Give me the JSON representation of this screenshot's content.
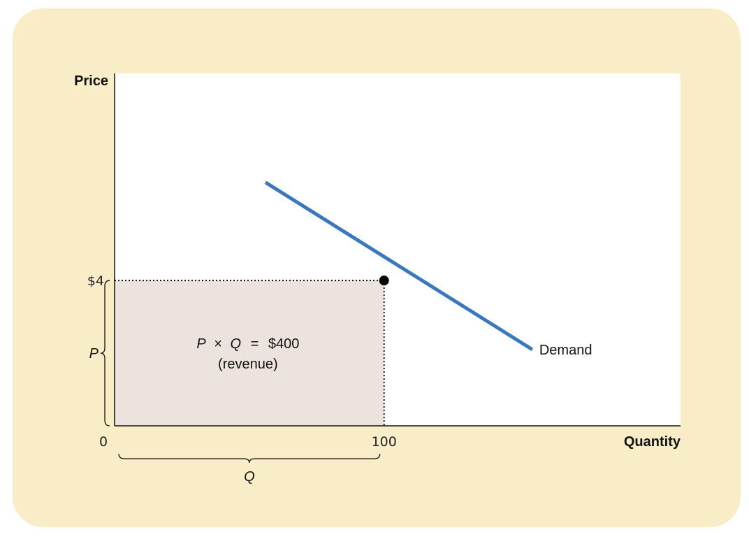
{
  "colors": {
    "panel_background": "#f9edc8",
    "plot_background": "#ffffff",
    "revenue_fill": "#ede3de",
    "demand_line": "#3a78bb",
    "axis": "#111111",
    "point": "#000000"
  },
  "chart_data": {
    "type": "line",
    "title": "",
    "xlabel": "Quantity",
    "ylabel": "Price",
    "x_ticks": [
      {
        "value": 0,
        "label": "0"
      },
      {
        "value": 100,
        "label": "100"
      }
    ],
    "y_ticks": [
      {
        "value": 4,
        "label": "$4"
      }
    ],
    "xlim": [
      0,
      210
    ],
    "ylim": [
      0,
      9.7
    ],
    "grid": false,
    "series": [
      {
        "name": "Demand",
        "x": [
          56,
          155
        ],
        "y": [
          6.7,
          2.1
        ]
      }
    ],
    "highlight_point": {
      "x": 100,
      "y": 4
    },
    "shaded_area": {
      "x": [
        0,
        100
      ],
      "y": [
        0,
        4
      ]
    },
    "annotations": {
      "revenue_formula_parts": [
        "P",
        "×",
        "Q",
        "=",
        "$400"
      ],
      "revenue_caption": "(revenue)",
      "price_brace_label": "P",
      "quantity_brace_label": "Q"
    }
  }
}
